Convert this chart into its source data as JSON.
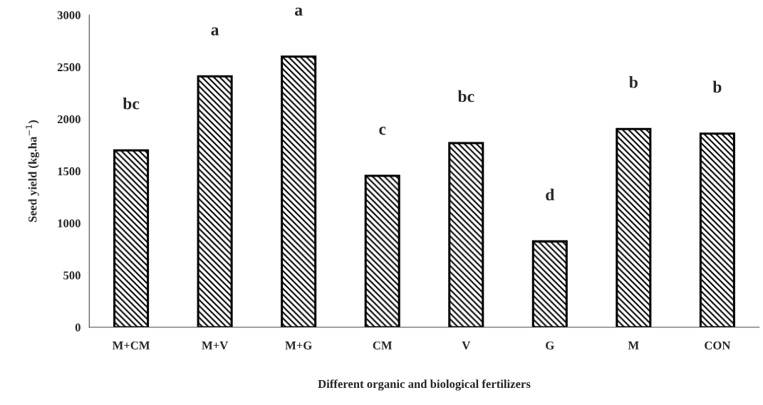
{
  "chart_data": {
    "type": "bar",
    "xlabel": "Different organic and biological fertilizers",
    "ylabel": "Seed yield (kg.ha$^{−1}$)",
    "categories": [
      "M+CM",
      "M+V",
      "M+G",
      "CM",
      "V",
      "G",
      "M",
      "CON"
    ],
    "values": [
      1700,
      2410,
      2600,
      1455,
      1770,
      825,
      1905,
      1860
    ],
    "value_labels": [
      "bc",
      "a",
      "a",
      "c",
      "bc",
      "d",
      "b",
      "b"
    ],
    "color": "#000000",
    "ylim": [
      0,
      3000
    ],
    "yticks": [
      0,
      500,
      1000,
      1500,
      2000,
      2500,
      3000
    ],
    "grid": false
  }
}
